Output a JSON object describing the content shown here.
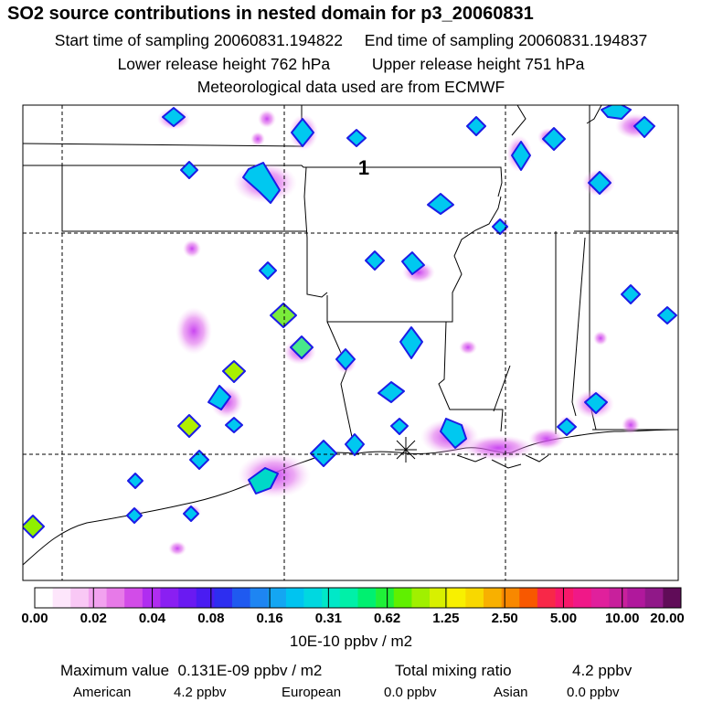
{
  "header": {
    "title": "SO2 source contributions in nested domain for p3_20060831",
    "start_label": "Start time of sampling",
    "start_value": "20060831.194822",
    "end_label": "End time of sampling",
    "end_value": "20060831.194837",
    "lower_label": "Lower release height",
    "lower_value": "762 hPa",
    "upper_label": "Upper release height",
    "upper_value": "751 hPa",
    "met_line": "Meteorological data used are from ECMWF"
  },
  "map": {
    "marker_label": "1"
  },
  "legend": {
    "ticks": [
      "0.00",
      "0.02",
      "0.04",
      "0.08",
      "0.16",
      "0.31",
      "0.62",
      "1.25",
      "2.50",
      "5.00",
      "10.00",
      "20.00"
    ],
    "colors": [
      "#ffffff",
      "#fde6fb",
      "#f9c8f5",
      "#f2a2ef",
      "#e77ae8",
      "#d24ce8",
      "#b02df0",
      "#8a1ff2",
      "#6a1af2",
      "#4a1cf2",
      "#2d2ef0",
      "#1f5af0",
      "#1e85f2",
      "#14a6f2",
      "#00c4f0",
      "#00d8e0",
      "#00e8c8",
      "#00f0a8",
      "#00f070",
      "#20f038",
      "#60f000",
      "#a0f000",
      "#d8f000",
      "#f8f000",
      "#f8d800",
      "#f8b000",
      "#f88800",
      "#f85800",
      "#f82848",
      "#f8186a",
      "#f01888",
      "#e0209c",
      "#c8209c",
      "#b0189c",
      "#901888",
      "#600c58"
    ],
    "unit": "10E-10 ppbv / m2"
  },
  "footer": {
    "max_label": "Maximum value",
    "max_value": "0.131E-09 ppbv / m2",
    "total_label": "Total mixing ratio",
    "total_value": "4.2 ppbv",
    "american_label": "American",
    "american_value": "4.2 ppbv",
    "european_label": "European",
    "european_value": "0.0 ppbv",
    "asian_label": "Asian",
    "asian_value": "0.0 ppbv"
  }
}
